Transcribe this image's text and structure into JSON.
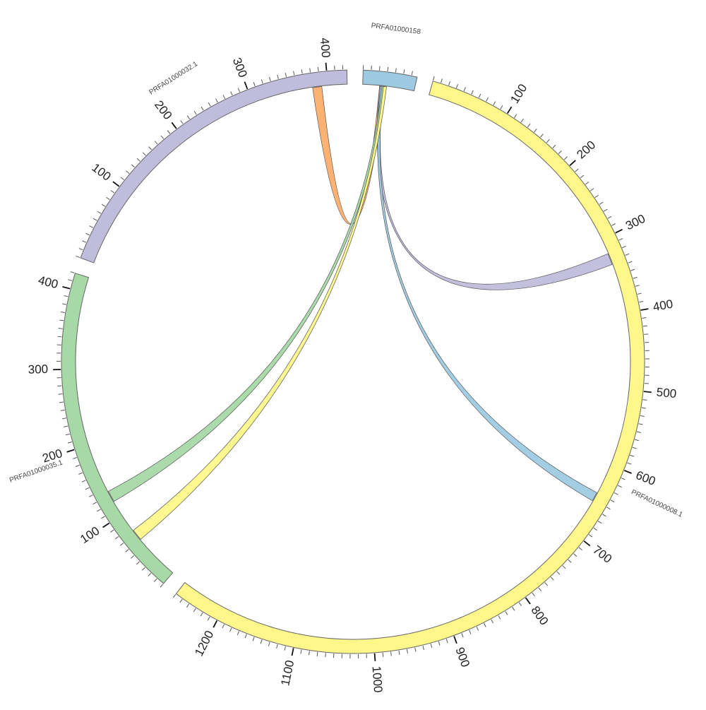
{
  "diagram": {
    "type": "circos",
    "segments": [
      {
        "name": "PRFA01000158",
        "length": 67,
        "color": "#9ecae1",
        "ticks": []
      },
      {
        "name": "PRFA01000008.1",
        "length": 1260,
        "color": "#fff78a",
        "ticks": [
          100,
          200,
          300,
          400,
          500,
          600,
          700,
          800,
          900,
          1000,
          1100,
          1200
        ]
      },
      {
        "name": "PRFA01000035.1",
        "length": 420,
        "color": "#a6d9a6",
        "ticks": [
          100,
          200,
          300,
          400
        ]
      },
      {
        "name": "PRFA01000032.1",
        "length": 425,
        "color": "#c0bddc",
        "ticks": [
          100,
          200,
          300,
          400
        ]
      }
    ],
    "links": [
      {
        "from": "PRFA01000032.1",
        "from_range": [
          380,
          392
        ],
        "to": "PRFA01000158",
        "to_range": [
          22,
          28
        ],
        "color": "#fdae6b"
      },
      {
        "from": "PRFA01000158",
        "from_range": [
          22,
          27
        ],
        "to": "PRFA01000008.1",
        "to_range": [
          320,
          335
        ],
        "color": "#c0bddc"
      },
      {
        "from": "PRFA01000158",
        "from_range": [
          23,
          27
        ],
        "to": "PRFA01000008.1",
        "to_range": [
          640,
          652
        ],
        "color": "#9ecae1"
      },
      {
        "from": "PRFA01000158",
        "from_range": [
          25,
          29
        ],
        "to": "PRFA01000035.1",
        "to_range": [
          120,
          135
        ],
        "color": "#a6d9a6"
      },
      {
        "from": "PRFA01000158",
        "from_range": [
          27,
          31
        ],
        "to": "PRFA01000035.1",
        "to_range": [
          60,
          75
        ],
        "color": "#fff78a"
      }
    ]
  }
}
